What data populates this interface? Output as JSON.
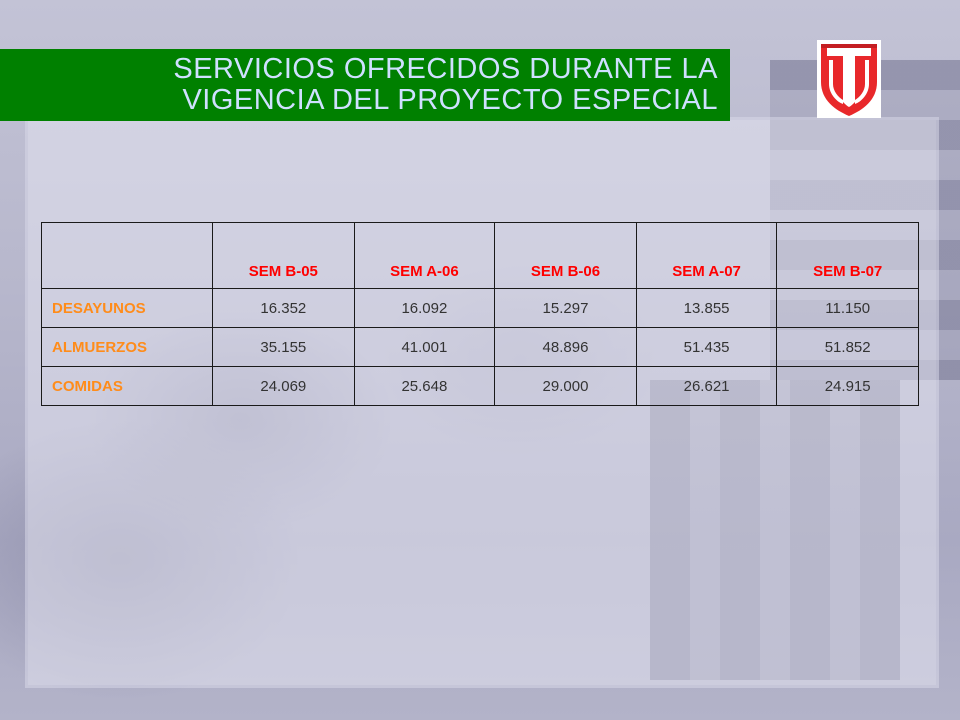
{
  "title": {
    "line1": "SERVICIOS OFRECIDOS DURANTE LA",
    "line2": "VIGENCIA  DEL PROYECTO ESPECIAL"
  },
  "logo": {
    "icon": "university-shield-logo",
    "letter": "T",
    "color": "#e8282b"
  },
  "colors": {
    "title_bar": "#008000",
    "title_text": "#cfe0ff",
    "header_text": "#ff0000",
    "row_label_text": "#ff8c1a"
  },
  "table": {
    "corner": "",
    "columns": [
      "SEM B-05",
      "SEM A-06",
      "SEM B-06",
      "SEM A-07",
      "SEM B-07"
    ],
    "rows": [
      {
        "label": "DESAYUNOS",
        "values": [
          "16.352",
          "16.092",
          "15.297",
          "13.855",
          "11.150"
        ]
      },
      {
        "label": "ALMUERZOS",
        "values": [
          "35.155",
          "41.001",
          "48.896",
          "51.435",
          "51.852"
        ]
      },
      {
        "label": "COMIDAS",
        "values": [
          "24.069",
          "25.648",
          "29.000",
          "26.621",
          "24.915"
        ]
      }
    ]
  }
}
